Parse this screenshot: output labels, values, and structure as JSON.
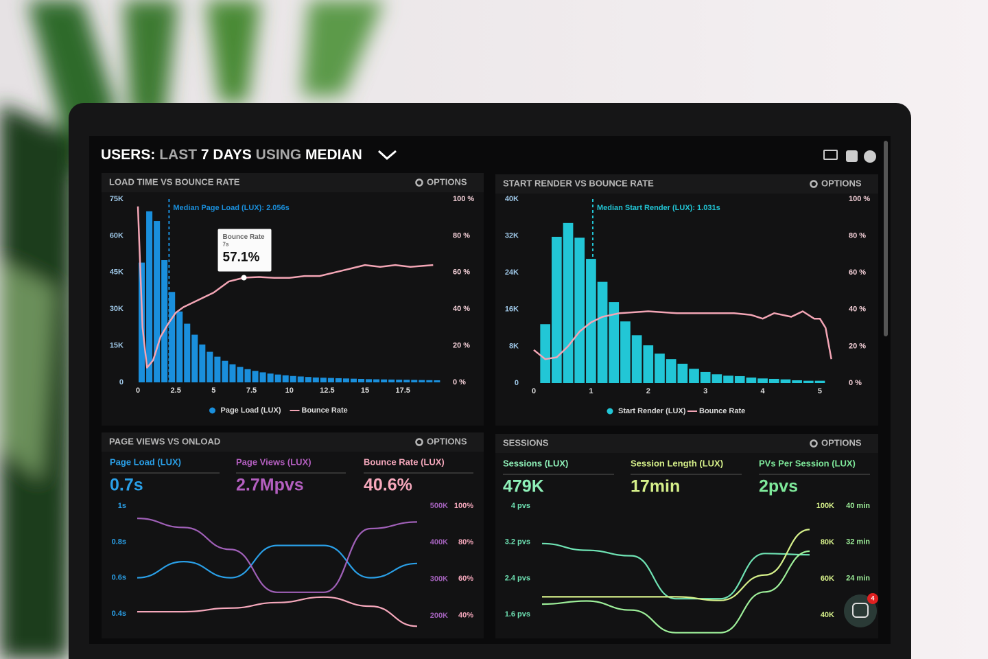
{
  "header": {
    "title_parts": [
      "USERS:",
      "LAST",
      "7 DAYS",
      "USING",
      "MEDIAN"
    ]
  },
  "chat_badge": 4,
  "chart_data": [
    {
      "type": "histogram",
      "title": "LOAD TIME VS BOUNCE RATE",
      "options": "OPTIONS",
      "annotation": "Median Page Load (LUX): 2.056s",
      "median": 2.056,
      "tooltip": {
        "title": "Bounce Rate",
        "x": 7,
        "x_label": "7s",
        "value": 57.1,
        "value_label": "57.1%"
      },
      "bins": [
        0,
        0.5,
        1,
        1.5,
        2,
        2.5,
        3,
        3.5,
        4,
        4.5,
        5,
        5.5,
        6,
        6.5,
        7,
        7.5,
        8,
        8.5,
        9,
        9.5,
        10,
        10.5,
        11,
        11.5,
        12,
        12.5,
        13,
        13.5,
        14,
        14.5,
        15,
        15.5,
        16,
        16.5,
        17,
        17.5,
        18,
        18.5,
        19,
        19.5,
        20
      ],
      "series": [
        {
          "name": "Page Load (LUX)",
          "color": "#1a8fdc",
          "values": [
            49000,
            70000,
            66000,
            50000,
            37000,
            29000,
            24000,
            19500,
            15500,
            12500,
            10500,
            8800,
            7400,
            6300,
            5400,
            4700,
            4100,
            3600,
            3200,
            2900,
            2600,
            2400,
            2200,
            2000,
            1900,
            1800,
            1700,
            1600,
            1500,
            1400,
            1300,
            1250,
            1200,
            1150,
            1100,
            1050,
            1000,
            950,
            900,
            850
          ]
        },
        {
          "name": "Bounce Rate",
          "color": "#f3a5b5",
          "axis": "y2",
          "x": [
            0,
            0.3,
            0.6,
            1,
            1.5,
            2,
            2.5,
            3,
            4,
            5,
            6,
            7,
            8,
            9,
            10,
            11,
            12,
            13,
            14,
            15,
            16,
            17,
            18,
            19.5
          ],
          "values": [
            96,
            30,
            8,
            12,
            25,
            32,
            38,
            41,
            45,
            49,
            55,
            57.1,
            57.5,
            57,
            57,
            58,
            58,
            60,
            62,
            64,
            63,
            64,
            63,
            64
          ]
        }
      ],
      "xlim": [
        -0.5,
        20.3
      ],
      "xticks": [
        0,
        2.5,
        5,
        7.5,
        10,
        12.5,
        15,
        17.5
      ],
      "ylim": [
        0,
        75000
      ],
      "yticks": [
        0,
        {
          "value": 15000,
          "label": "15K"
        },
        {
          "value": 30000,
          "label": "30K"
        },
        {
          "value": 45000,
          "label": "45K"
        },
        {
          "value": 60000,
          "label": "60K"
        },
        {
          "value": 75000,
          "label": "75K"
        }
      ],
      "y2lim": [
        0,
        100
      ],
      "y2ticks": [
        {
          "value": 0,
          "label": "0 %"
        },
        {
          "value": 20,
          "label": "20 %"
        },
        {
          "value": 40,
          "label": "40 %"
        },
        {
          "value": 60,
          "label": "60 %"
        },
        {
          "value": 80,
          "label": "80 %"
        },
        {
          "value": 100,
          "label": "100 %"
        }
      ]
    },
    {
      "type": "histogram",
      "title": "START RENDER VS BOUNCE RATE",
      "options": "OPTIONS",
      "annotation": "Median Start Render (LUX): 1.031s",
      "median": 1.031,
      "bins": [
        0.1,
        0.3,
        0.5,
        0.7,
        0.9,
        1.1,
        1.3,
        1.5,
        1.7,
        1.9,
        2.1,
        2.3,
        2.5,
        2.7,
        2.9,
        3.1,
        3.3,
        3.5,
        3.7,
        3.9,
        4.1,
        4.3,
        4.5,
        4.7,
        4.9,
        5.1
      ],
      "series": [
        {
          "name": "Start Render (LUX)",
          "color": "#22c6d6",
          "values": [
            12800,
            31800,
            34800,
            31600,
            27000,
            22000,
            17600,
            13400,
            10400,
            8200,
            6400,
            5200,
            4200,
            3100,
            2400,
            1900,
            1600,
            1500,
            1200,
            1000,
            900,
            800,
            600,
            500,
            500
          ]
        },
        {
          "name": "Bounce Rate",
          "color": "#f3a5b5",
          "axis": "y2",
          "x": [
            0,
            0.2,
            0.4,
            0.6,
            0.8,
            1,
            1.2,
            1.5,
            2,
            2.5,
            3,
            3.5,
            3.8,
            4,
            4.2,
            4.5,
            4.7,
            4.9,
            5,
            5.1,
            5.2
          ],
          "values": [
            18,
            13,
            14,
            20,
            28,
            33,
            36,
            38,
            39,
            38,
            38,
            38,
            37,
            35,
            38,
            36,
            39,
            35,
            35,
            30,
            13
          ]
        }
      ],
      "xlim": [
        0,
        5.3
      ],
      "xticks": [
        0,
        1,
        2,
        3,
        4,
        5
      ],
      "ylim": [
        0,
        40000
      ],
      "yticks": [
        0,
        {
          "value": 8000,
          "label": "8K"
        },
        {
          "value": 16000,
          "label": "16K"
        },
        {
          "value": 24000,
          "label": "24K"
        },
        {
          "value": 32000,
          "label": "32K"
        },
        {
          "value": 40000,
          "label": "40K"
        }
      ],
      "y2lim": [
        0,
        100
      ],
      "y2ticks": [
        {
          "value": 0,
          "label": "0 %"
        },
        {
          "value": 20,
          "label": "20 %"
        },
        {
          "value": 40,
          "label": "40 %"
        },
        {
          "value": 60,
          "label": "60 %"
        },
        {
          "value": 80,
          "label": "80 %"
        },
        {
          "value": 100,
          "label": "100 %"
        }
      ]
    },
    {
      "type": "line",
      "title": "PAGE VIEWS VS ONLOAD",
      "options": "OPTIONS",
      "kpis": [
        {
          "label": "Page Load (LUX)",
          "value": "0.7s",
          "color": "#2aa0e8"
        },
        {
          "label": "Page Views (LUX)",
          "value": "2.7Mpvs",
          "color": "#b45fc0"
        },
        {
          "label": "Bounce Rate (LUX)",
          "value": "40.6%",
          "color": "#f6a8bc"
        }
      ],
      "series": [
        {
          "color": "#2aa0e8",
          "values": [
            0.6,
            0.69,
            0.6,
            0.78,
            0.78,
            0.6,
            0.68
          ]
        },
        {
          "color": "#a060b8",
          "axis": "y2",
          "values": [
            466000,
            441000,
            381000,
            264000,
            264000,
            438000,
            456000
          ]
        },
        {
          "color": "#f6a8bc",
          "axis": "y3",
          "values": [
            42,
            42,
            44,
            47,
            50,
            45,
            34
          ]
        }
      ],
      "ylim": [
        0.32,
        1
      ],
      "yticks": [
        {
          "value": 1,
          "label": "1s"
        },
        {
          "value": 0.8,
          "label": "0.8s"
        },
        {
          "value": 0.6,
          "label": "0.6s"
        },
        {
          "value": 0.4,
          "label": "0.4s"
        }
      ],
      "y2lim": [
        166000,
        500000
      ],
      "y2ticks": [
        {
          "value": 500000,
          "label": "500K"
        },
        {
          "value": 400000,
          "label": "400K"
        },
        {
          "value": 300000,
          "label": "300K"
        },
        {
          "value": 200000,
          "label": "200K"
        }
      ],
      "y3lim": [
        33,
        100
      ],
      "y3ticks": [
        {
          "value": 100,
          "label": "100%"
        },
        {
          "value": 80,
          "label": "80%"
        },
        {
          "value": 60,
          "label": "60%"
        },
        {
          "value": 40,
          "label": "40%"
        }
      ]
    },
    {
      "type": "line",
      "title": "SESSIONS",
      "options": "OPTIONS",
      "kpis": [
        {
          "label": "Sessions (LUX)",
          "value": "479K",
          "color": "#8ef0b8"
        },
        {
          "label": "Session Length (LUX)",
          "value": "17min",
          "color": "#d6f08a"
        },
        {
          "label": "PVs Per Session (LUX)",
          "value": "2pvs",
          "color": "#7ee89a"
        }
      ],
      "series": [
        {
          "color": "#6fe3b4",
          "values": [
            3.17,
            3.02,
            2.9,
            1.95,
            1.95,
            2.95,
            2.92
          ]
        },
        {
          "color": "#d6f08a",
          "axis": "y2",
          "values": [
            50000,
            50000,
            50000,
            50000,
            48000,
            62000,
            87000
          ]
        },
        {
          "color": "#9ef09a",
          "axis": "y3",
          "values": [
            18.3,
            19,
            17,
            12,
            12,
            21,
            30
          ]
        }
      ],
      "ylim": [
        1.15,
        4
      ],
      "yticks": [
        {
          "value": 4,
          "label": "4 pvs"
        },
        {
          "value": 3.2,
          "label": "3.2 pvs"
        },
        {
          "value": 2.4,
          "label": "2.4 pvs"
        },
        {
          "value": 1.6,
          "label": "1.6 pvs"
        }
      ],
      "y2lim": [
        29000,
        100000
      ],
      "y2ticks": [
        {
          "value": 100000,
          "label": "100K"
        },
        {
          "value": 80000,
          "label": "80K"
        },
        {
          "value": 60000,
          "label": "60K"
        },
        {
          "value": 40000,
          "label": "40K"
        }
      ],
      "y3lim": [
        11.5,
        40
      ],
      "y3ticks": [
        {
          "value": 40,
          "label": "40 min"
        },
        {
          "value": 32,
          "label": "32 min"
        },
        {
          "value": 24,
          "label": "24 min"
        }
      ]
    }
  ]
}
